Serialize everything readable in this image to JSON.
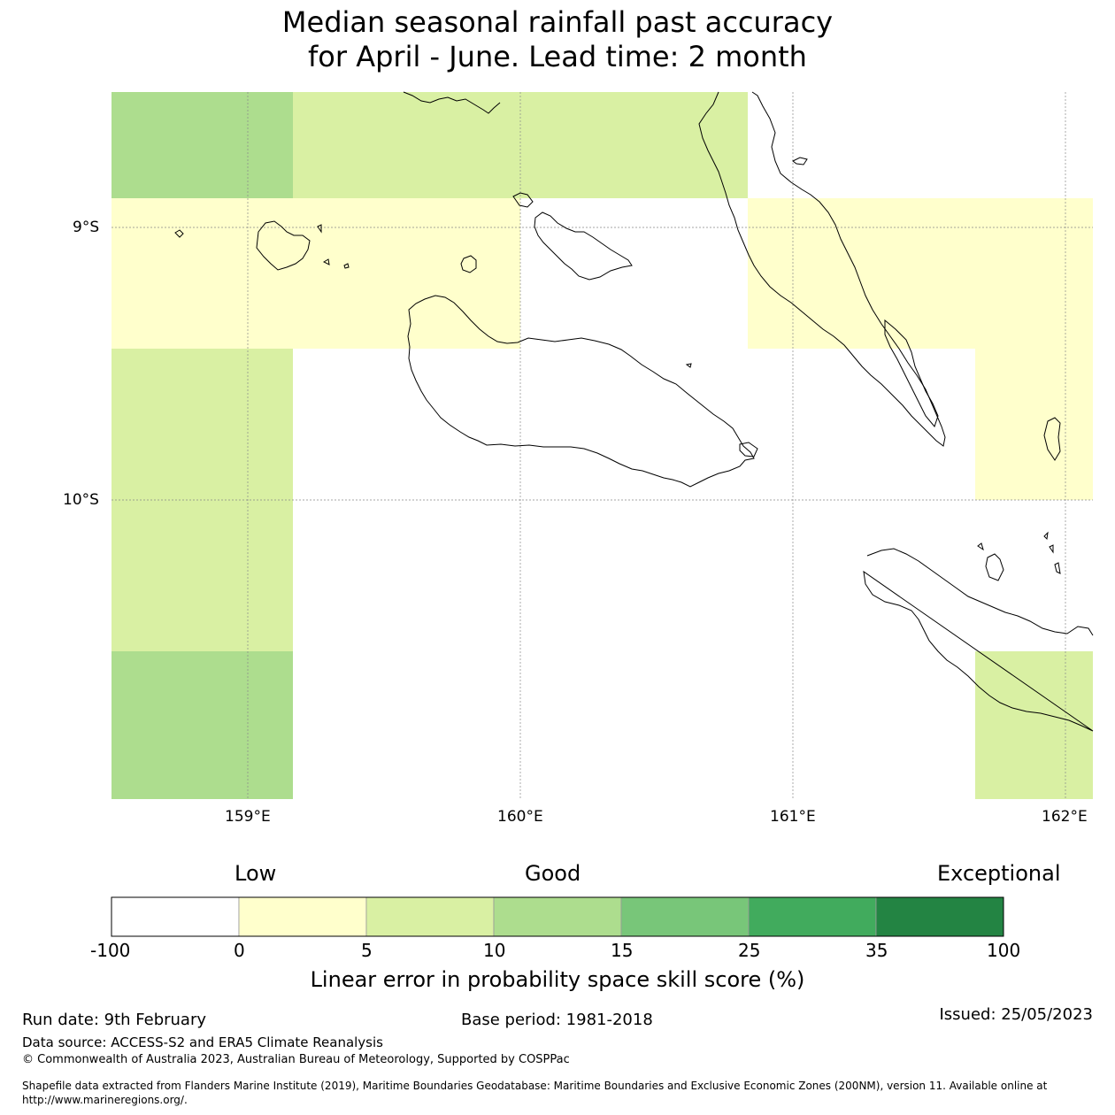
{
  "title_line1": "Median seasonal rainfall past accuracy",
  "title_line2": "for April - June. Lead time: 2 month",
  "map": {
    "lat_labels": [
      "9°S",
      "10°S"
    ],
    "lon_labels": [
      "159°E",
      "160°E",
      "161°E",
      "162°E"
    ],
    "extent": {
      "lon_min": 158.5,
      "lon_max": 162.1,
      "lat_min": -11.1,
      "lat_max": -8.5
    },
    "skill_cells": [
      {
        "lon0": 158.5,
        "lon1": 159.167,
        "lat0": -8.5,
        "lat1": -8.889,
        "category": "10-15"
      },
      {
        "lon0": 159.167,
        "lon1": 160.833,
        "lat0": -8.5,
        "lat1": -8.889,
        "category": "5-10"
      },
      {
        "lon0": 158.5,
        "lon1": 160.0,
        "lat0": -8.889,
        "lat1": -9.444,
        "category": "0-5"
      },
      {
        "lon0": 160.833,
        "lon1": 162.1,
        "lat0": -8.889,
        "lat1": -9.444,
        "category": "0-5"
      },
      {
        "lon0": 161.667,
        "lon1": 162.1,
        "lat0": -9.444,
        "lat1": -10.0,
        "category": "0-5"
      },
      {
        "lon0": 158.5,
        "lon1": 159.167,
        "lat0": -9.444,
        "lat1": -10.556,
        "category": "5-10"
      },
      {
        "lon0": 158.5,
        "lon1": 159.167,
        "lat0": -10.556,
        "lat1": -11.1,
        "category": "10-15"
      },
      {
        "lon0": 161.667,
        "lon1": 162.1,
        "lat0": -10.556,
        "lat1": -11.1,
        "category": "5-10"
      }
    ]
  },
  "colorbar": {
    "categories": [
      "Low",
      "Good",
      "Exceptional"
    ],
    "ticks": [
      "-100",
      "0",
      "5",
      "10",
      "15",
      "25",
      "35",
      "100"
    ],
    "colors": [
      "#ffffff",
      "#ffffcc",
      "#d9f0a3",
      "#addd8e",
      "#78c679",
      "#41ab5d",
      "#238443"
    ],
    "label": "Linear error in probability space skill score (%)"
  },
  "footer": {
    "run_date": "Run date: 9th February",
    "base_period": "Base period: 1981-2018",
    "issued": "Issued: 25/05/2023",
    "data_source": "Data source: ACCESS-S2 and ERA5 Climate Reanalysis",
    "copyright": "© Commonwealth of Australia 2023, Australian Bureau of Meteorology, Supported by COSPPac",
    "shapefile_line1": "Shapefile data extracted from Flanders Marine Institute (2019), Maritime Boundaries Geodatabase: Maritime Boundaries and Exclusive Economic Zones (200NM), version 11. Available online at",
    "shapefile_line2": "http://www.marineregions.org/."
  }
}
